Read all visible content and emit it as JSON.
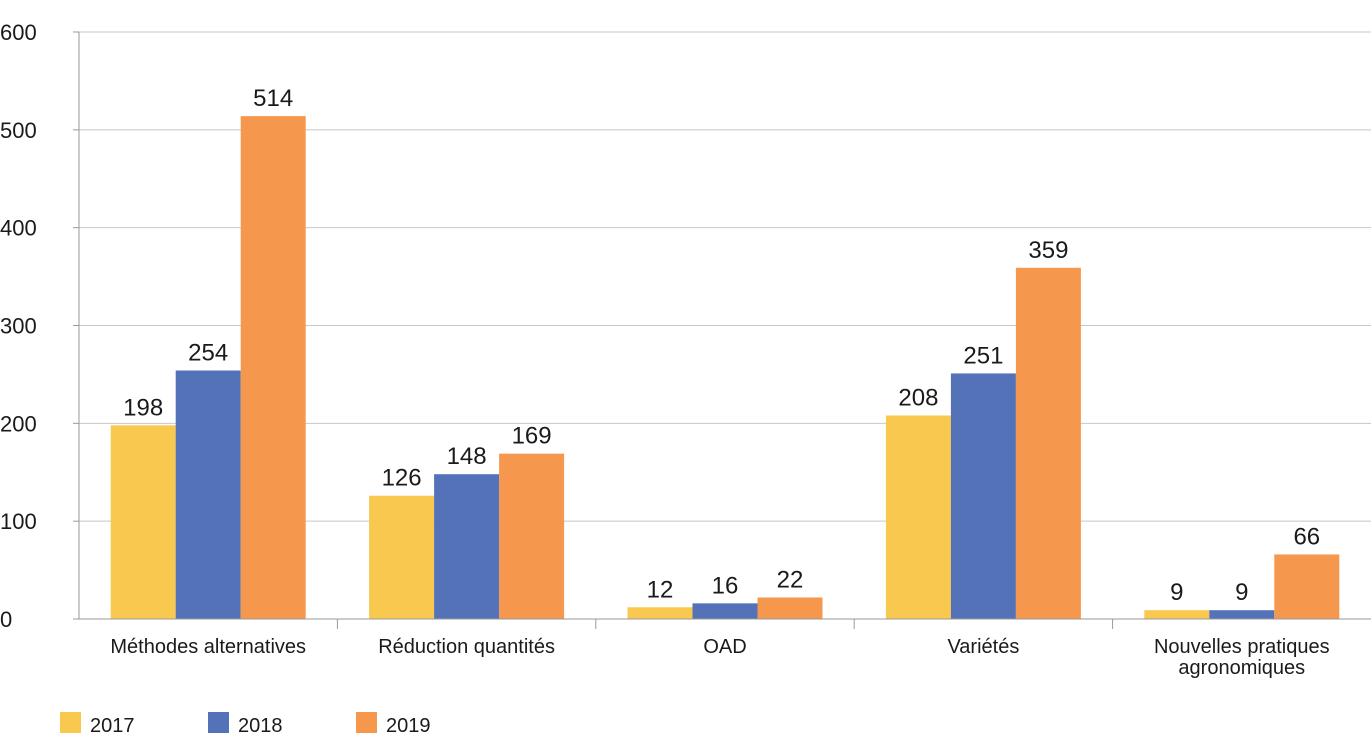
{
  "chart_data": {
    "type": "bar",
    "categories": [
      [
        "Méthodes alternatives"
      ],
      [
        "Réduction quantités"
      ],
      [
        "OAD"
      ],
      [
        "Variétés"
      ],
      [
        "Nouvelles pratiques",
        "agronomiques"
      ]
    ],
    "series": [
      {
        "name": "2017",
        "color": "#F9C84E",
        "values": [
          198,
          126,
          12,
          208,
          9
        ]
      },
      {
        "name": "2018",
        "color": "#5472B8",
        "values": [
          254,
          148,
          16,
          251,
          9
        ]
      },
      {
        "name": "2019",
        "color": "#F6974E",
        "values": [
          514,
          169,
          22,
          359,
          66
        ]
      }
    ],
    "y_ticks": [
      0,
      100,
      200,
      300,
      400,
      500,
      600
    ],
    "ylim": [
      0,
      600
    ],
    "grid": true,
    "legend_position": "bottom-left",
    "data_labels": true
  }
}
